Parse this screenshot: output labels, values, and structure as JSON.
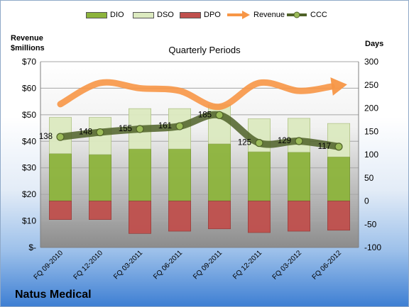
{
  "chart_data": {
    "type": "bar",
    "title": "Quarterly Periods",
    "company": "Natus Medical",
    "left_axis_title": [
      "Revenue",
      "$millions"
    ],
    "right_axis_title": "Days",
    "categories": [
      "FQ 09-2010",
      "FQ 12-2010",
      "FQ 03-2011",
      "FQ 06-2011",
      "FQ 09-2011",
      "FQ 12-2011",
      "FQ 03-2012",
      "FQ 06-2012"
    ],
    "left_ticks": [
      "$-",
      "$10",
      "$20",
      "$30",
      "$40",
      "$50",
      "$60",
      "$70"
    ],
    "left_ylim": [
      0,
      70
    ],
    "right_ticks": [
      "-100",
      "-50",
      "0",
      "50",
      "100",
      "150",
      "200",
      "250",
      "300"
    ],
    "right_ylim": [
      -100,
      300
    ],
    "grid": true,
    "legend_position": "top",
    "series": [
      {
        "name": "DIO",
        "type": "bar",
        "axis": "days",
        "color": "#8db43c",
        "values": [
          102,
          100,
          112,
          112,
          123,
          106,
          105,
          95
        ]
      },
      {
        "name": "DSO",
        "type": "bar",
        "axis": "days",
        "color": "#dceac0",
        "values": [
          78,
          80,
          87,
          87,
          84,
          71,
          73,
          72
        ]
      },
      {
        "name": "DPO",
        "type": "bar",
        "axis": "days",
        "color": "#c0504d",
        "values": [
          -40,
          -40,
          -70,
          -65,
          -60,
          -68,
          -65,
          -63
        ]
      },
      {
        "name": "Revenue",
        "type": "line",
        "axis": "revenue",
        "color": "#f79646",
        "values": [
          54,
          62,
          60,
          59,
          53,
          62,
          59,
          61
        ]
      },
      {
        "name": "CCC",
        "type": "line",
        "axis": "days",
        "color": "#4f6228",
        "values": [
          138,
          148,
          155,
          161,
          185,
          125,
          129,
          117
        ],
        "labels": [
          "138",
          "148",
          "155",
          "161",
          "185",
          "125",
          "129",
          "117"
        ]
      }
    ]
  }
}
